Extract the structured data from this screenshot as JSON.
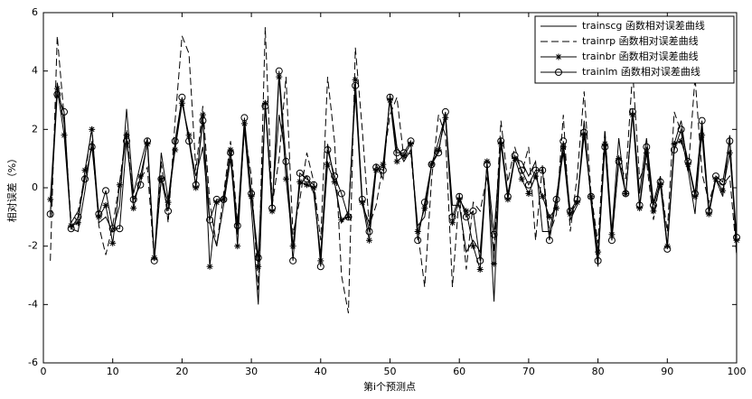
{
  "chart_data": {
    "type": "line",
    "xlabel": "第i个预测点",
    "ylabel": "相对误差（%）",
    "x": [
      1,
      2,
      3,
      4,
      5,
      6,
      7,
      8,
      9,
      10,
      11,
      12,
      13,
      14,
      15,
      16,
      17,
      18,
      19,
      20,
      21,
      22,
      23,
      24,
      25,
      26,
      27,
      28,
      29,
      30,
      31,
      32,
      33,
      34,
      35,
      36,
      37,
      38,
      39,
      40,
      41,
      42,
      43,
      44,
      45,
      46,
      47,
      48,
      49,
      50,
      51,
      52,
      53,
      54,
      55,
      56,
      57,
      58,
      59,
      60,
      61,
      62,
      63,
      64,
      65,
      66,
      67,
      68,
      69,
      70,
      71,
      72,
      73,
      74,
      75,
      76,
      77,
      78,
      79,
      80,
      81,
      82,
      83,
      84,
      85,
      86,
      87,
      88,
      89,
      90,
      91,
      92,
      93,
      94,
      95,
      96,
      97,
      98,
      99,
      100
    ],
    "series": [
      {
        "name": "trainscg  函数相对误差曲线",
        "color": "#000000",
        "dash": "none",
        "marker": "none",
        "values": [
          -1.0,
          3.6,
          2.2,
          -1.4,
          -1.5,
          -0.1,
          1.6,
          -1.2,
          -1.0,
          -1.5,
          -0.6,
          2.7,
          -0.2,
          0.8,
          1.7,
          -2.4,
          1.2,
          -0.4,
          1.5,
          3.0,
          1.6,
          0.4,
          1.4,
          -1.2,
          -2.0,
          -0.6,
          1.0,
          -1.6,
          2.0,
          -0.7,
          -4.0,
          3.0,
          -0.5,
          2.5,
          1.0,
          -2.0,
          0.1,
          0.4,
          -0.2,
          -2.3,
          1.5,
          0.2,
          -1.2,
          -0.8,
          3.2,
          -0.6,
          -1.2,
          0.8,
          0.3,
          3.2,
          1.4,
          0.9,
          1.3,
          -1.3,
          -1.0,
          0.8,
          1.6,
          2.5,
          -0.6,
          -0.6,
          -2.2,
          -1.8,
          -2.2,
          0.8,
          -3.9,
          1.7,
          -0.2,
          1.0,
          0.9,
          0.4,
          0.9,
          -1.5,
          -1.5,
          -0.3,
          1.2,
          -1.1,
          -0.6,
          2.3,
          -0.5,
          -2.7,
          1.9,
          -1.5,
          1.7,
          -0.3,
          2.7,
          -0.2,
          1.7,
          -0.5,
          0.4,
          -2.0,
          1.5,
          2.3,
          0.6,
          -0.9,
          2.1,
          -0.8,
          0.3,
          -0.3,
          1.8,
          -2.3
        ]
      },
      {
        "name": "trainrp  函数相对误差曲线",
        "color": "#000000",
        "dash": "dashed",
        "marker": "none",
        "values": [
          -2.5,
          5.2,
          2.4,
          -1.2,
          -0.8,
          0.4,
          2.1,
          -1.3,
          -2.3,
          -1.3,
          0.2,
          2.0,
          -0.5,
          0.3,
          0.7,
          -2.5,
          0.9,
          -1.2,
          2.3,
          5.2,
          4.6,
          0.6,
          2.8,
          -0.5,
          -2.0,
          -0.2,
          1.6,
          -1.2,
          2.0,
          0.4,
          -3.5,
          5.5,
          -0.6,
          1.0,
          3.8,
          -1.6,
          -0.4,
          1.2,
          0.2,
          -1.8,
          3.8,
          1.6,
          -3.0,
          -4.3,
          4.8,
          2.0,
          -1.3,
          -0.6,
          0.8,
          2.5,
          3.1,
          1.0,
          1.2,
          -1.5,
          -3.4,
          0.3,
          2.5,
          1.8,
          -3.4,
          -0.2,
          -2.8,
          -0.5,
          -0.8,
          0.4,
          -2.2,
          2.3,
          0.2,
          1.4,
          0.5,
          1.4,
          -1.8,
          0.8,
          -1.6,
          -0.9,
          2.5,
          -1.5,
          0.4,
          3.3,
          -0.2,
          -1.9,
          2.0,
          -1.8,
          0.9,
          0.3,
          4.0,
          0.3,
          0.9,
          -1.1,
          0.3,
          -1.5,
          2.6,
          1.9,
          0.5,
          3.8,
          0.5,
          -0.5,
          0.3,
          0.1,
          0.4,
          -2.3
        ]
      },
      {
        "name": "trainbr  函数相对误差曲线",
        "color": "#000000",
        "dash": "none",
        "marker": "star",
        "values": [
          -0.4,
          3.4,
          1.8,
          -1.3,
          -1.2,
          0.6,
          2.0,
          -1.0,
          -0.6,
          -1.9,
          0.1,
          1.8,
          -0.7,
          0.4,
          1.5,
          -2.4,
          0.3,
          -0.5,
          1.3,
          2.9,
          1.8,
          0.0,
          2.5,
          -2.7,
          -0.5,
          -0.4,
          1.3,
          -2.0,
          2.2,
          -0.3,
          -2.7,
          2.9,
          -0.8,
          3.8,
          0.3,
          -2.0,
          0.2,
          0.1,
          0.0,
          -2.5,
          0.8,
          0.2,
          -1.1,
          -1.0,
          3.7,
          -0.5,
          -1.8,
          0.6,
          0.8,
          3.0,
          0.9,
          1.1,
          1.5,
          -1.5,
          -0.7,
          0.8,
          1.3,
          2.4,
          -1.2,
          -0.4,
          -0.8,
          -2.0,
          -2.8,
          0.9,
          -2.6,
          1.5,
          -0.4,
          1.0,
          0.3,
          -0.2,
          0.4,
          -0.3,
          -1.0,
          -0.7,
          1.4,
          -0.9,
          -0.5,
          1.8,
          -0.3,
          -2.2,
          1.5,
          -1.6,
          1.0,
          -0.2,
          2.5,
          -0.7,
          1.2,
          -0.8,
          0.1,
          -2.0,
          1.5,
          1.6,
          0.8,
          -0.3,
          1.8,
          -0.9,
          0.3,
          -0.1,
          1.2,
          -1.8
        ]
      },
      {
        "name": "trainlm  函数相对误差曲线",
        "color": "#000000",
        "dash": "none",
        "marker": "circle",
        "values": [
          -0.9,
          3.2,
          2.6,
          -1.4,
          -1.0,
          0.3,
          1.4,
          -0.9,
          -0.1,
          -1.4,
          -1.4,
          1.6,
          -0.4,
          0.1,
          1.6,
          -2.5,
          0.3,
          -0.8,
          1.6,
          3.1,
          1.6,
          0.1,
          2.3,
          -1.1,
          -0.4,
          -0.4,
          1.2,
          -1.3,
          2.4,
          -0.2,
          -2.4,
          2.8,
          -0.7,
          4.0,
          0.9,
          -2.5,
          0.5,
          0.3,
          0.1,
          -2.7,
          1.3,
          0.4,
          -0.2,
          -1.0,
          3.5,
          -0.4,
          -1.5,
          0.7,
          0.6,
          3.1,
          1.2,
          1.2,
          1.6,
          -1.8,
          -0.5,
          0.8,
          1.2,
          2.6,
          -1.0,
          -0.3,
          -1.0,
          -0.8,
          -2.5,
          0.8,
          -1.6,
          1.6,
          -0.3,
          1.1,
          0.6,
          0.1,
          0.6,
          0.6,
          -1.8,
          -0.4,
          1.6,
          -0.8,
          -0.4,
          1.9,
          -0.3,
          -2.5,
          1.4,
          -1.8,
          0.9,
          -0.2,
          2.6,
          -0.6,
          1.4,
          -0.6,
          0.2,
          -2.1,
          1.3,
          2.0,
          0.9,
          -0.2,
          2.3,
          -0.8,
          0.4,
          0.2,
          1.6,
          -1.7
        ]
      }
    ],
    "xlim": [
      0,
      100
    ],
    "xticks": [
      0,
      10,
      20,
      30,
      40,
      50,
      60,
      70,
      80,
      90,
      100
    ],
    "ylim": [
      -6,
      6
    ],
    "yticks": [
      -6,
      -4,
      -2,
      0,
      2,
      4,
      6
    ],
    "legend": "upper right"
  }
}
